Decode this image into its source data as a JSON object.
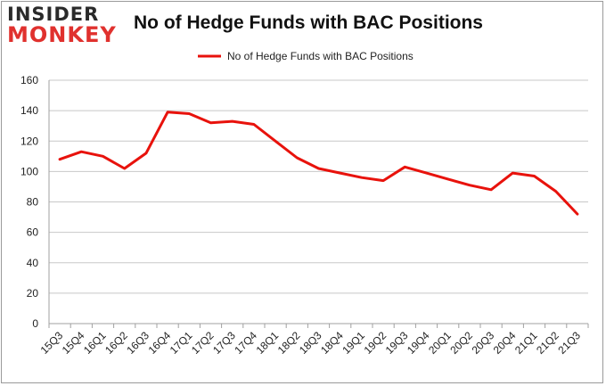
{
  "logo": {
    "line1": "INSIDER",
    "line2": "MONKEY"
  },
  "chart_data": {
    "type": "line",
    "title": "No of Hedge Funds with BAC Positions",
    "xlabel": "",
    "ylabel": "",
    "categories": [
      "15Q3",
      "15Q4",
      "16Q1",
      "16Q2",
      "16Q3",
      "16Q4",
      "17Q1",
      "17Q2",
      "17Q3",
      "17Q4",
      "18Q1",
      "18Q2",
      "18Q3",
      "18Q4",
      "19Q1",
      "19Q2",
      "19Q3",
      "19Q4",
      "20Q1",
      "20Q2",
      "20Q3",
      "20Q4",
      "21Q1",
      "21Q2",
      "21Q3"
    ],
    "series": [
      {
        "name": "No of Hedge Funds with BAC Positions",
        "values": [
          108,
          113,
          110,
          102,
          112,
          139,
          138,
          132,
          133,
          131,
          120,
          109,
          102,
          99,
          96,
          94,
          103,
          99,
          95,
          91,
          88,
          99,
          97,
          87,
          72
        ],
        "color": "#e8120c"
      }
    ],
    "ylim": [
      0,
      160
    ],
    "yticks": [
      0,
      20,
      40,
      60,
      80,
      100,
      120,
      140,
      160
    ],
    "grid": true,
    "legend_position": "top-center"
  }
}
